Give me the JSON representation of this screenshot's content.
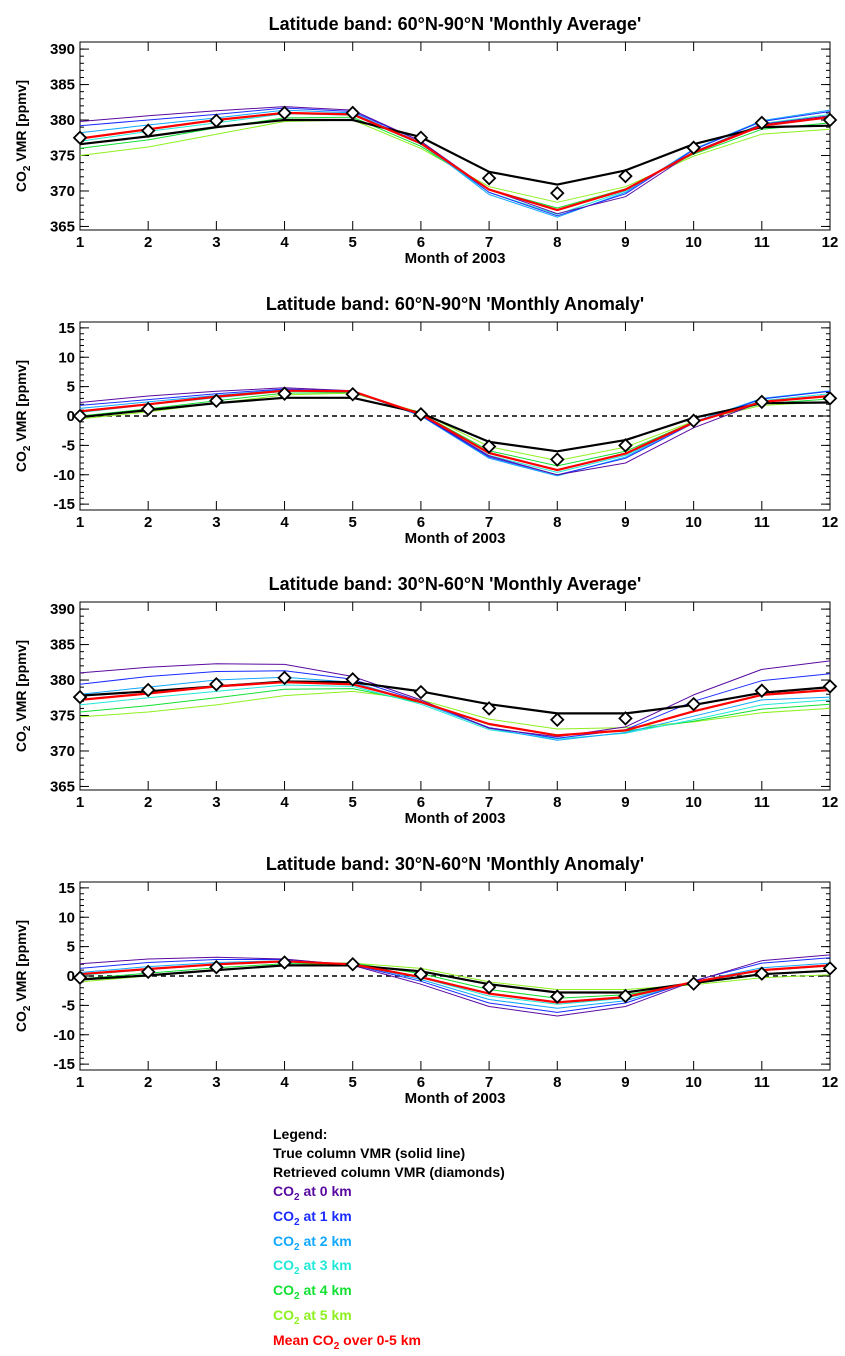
{
  "chart_data": [
    {
      "type": "line",
      "kind": "average",
      "title": "Latitude band: 60°N-90°N 'Monthly Average'",
      "xlabel": "Month of 2003",
      "ylabel_co": "CO",
      "ylabel_sub": "2",
      "ylabel_rest": " VMR [ppmv]",
      "ylim": [
        364.5,
        391
      ],
      "xlim": [
        1,
        12
      ],
      "x": [
        1,
        2,
        3,
        4,
        5,
        6,
        7,
        8,
        9,
        10,
        11,
        12
      ],
      "yticks": [
        365,
        370,
        375,
        380,
        385,
        390
      ],
      "xticks": [
        1,
        2,
        3,
        4,
        5,
        6,
        7,
        8,
        9,
        10,
        11,
        12
      ],
      "zero_line": false,
      "series": [
        {
          "key": "km0",
          "values": [
            379.8,
            380.6,
            381.3,
            381.9,
            381.4,
            377.0,
            370.2,
            366.8,
            369.2,
            375.5,
            379.4,
            380.6
          ]
        },
        {
          "key": "km1",
          "values": [
            379.2,
            380.0,
            380.8,
            381.7,
            381.2,
            377.0,
            369.8,
            366.5,
            369.6,
            375.8,
            379.8,
            381.2
          ]
        },
        {
          "key": "km2",
          "values": [
            378.2,
            379.3,
            380.3,
            381.4,
            381.0,
            376.8,
            369.5,
            366.3,
            369.8,
            375.9,
            379.9,
            381.4
          ]
        },
        {
          "key": "km3",
          "values": [
            377.0,
            378.4,
            379.6,
            380.9,
            380.7,
            376.6,
            369.8,
            366.7,
            370.0,
            375.5,
            379.5,
            380.8
          ]
        },
        {
          "key": "km4",
          "values": [
            376.0,
            377.2,
            378.9,
            380.3,
            380.4,
            376.3,
            370.2,
            367.6,
            370.3,
            375.2,
            378.7,
            379.6
          ]
        },
        {
          "key": "km5",
          "values": [
            375.0,
            376.2,
            378.0,
            379.8,
            380.0,
            376.0,
            370.6,
            368.4,
            370.6,
            374.9,
            378.0,
            378.7
          ]
        },
        {
          "key": "mean",
          "values": [
            377.4,
            378.7,
            380.0,
            381.0,
            380.8,
            376.7,
            370.2,
            367.3,
            370.2,
            375.4,
            379.2,
            380.4
          ]
        },
        {
          "key": "true",
          "values": [
            376.6,
            377.7,
            379.0,
            380.0,
            380.0,
            377.6,
            372.7,
            370.9,
            372.9,
            376.6,
            379.0,
            379.2
          ]
        },
        {
          "key": "retrieved",
          "values": [
            377.5,
            378.5,
            379.9,
            381.0,
            381.0,
            377.5,
            371.8,
            369.7,
            372.1,
            376.1,
            379.6,
            380.0
          ]
        }
      ]
    },
    {
      "type": "line",
      "kind": "anomaly",
      "title": "Latitude band: 60°N-90°N 'Monthly Anomaly'",
      "xlabel": "Month of 2003",
      "ylabel_co": "CO",
      "ylabel_sub": "2",
      "ylabel_rest": " VMR [ppmv]",
      "ylim": [
        -16,
        16
      ],
      "xlim": [
        1,
        12
      ],
      "x": [
        1,
        2,
        3,
        4,
        5,
        6,
        7,
        8,
        9,
        10,
        11,
        12
      ],
      "yticks": [
        -15,
        -10,
        -5,
        0,
        5,
        10,
        15
      ],
      "xticks": [
        1,
        2,
        3,
        4,
        5,
        6,
        7,
        8,
        9,
        10,
        11,
        12
      ],
      "zero_line": true,
      "series": [
        {
          "key": "km0",
          "values": [
            2.3,
            3.4,
            4.2,
            4.8,
            4.3,
            0.2,
            -6.8,
            -10.0,
            -8.0,
            -2.0,
            2.4,
            3.5
          ]
        },
        {
          "key": "km1",
          "values": [
            1.8,
            2.8,
            3.8,
            4.6,
            4.2,
            0.1,
            -7.0,
            -10.0,
            -7.2,
            -1.2,
            2.9,
            4.2
          ]
        },
        {
          "key": "km2",
          "values": [
            1.3,
            2.4,
            3.5,
            4.5,
            4.2,
            0.0,
            -7.2,
            -10.2,
            -7.0,
            -1.0,
            3.0,
            4.3
          ]
        },
        {
          "key": "km3",
          "values": [
            0.6,
            1.9,
            3.1,
            4.2,
            4.1,
            0.1,
            -6.7,
            -9.6,
            -6.7,
            -1.1,
            2.6,
            3.8
          ]
        },
        {
          "key": "km4",
          "values": [
            0.0,
            1.2,
            2.6,
            3.9,
            4.0,
            0.4,
            -5.9,
            -8.5,
            -6.0,
            -1.0,
            2.1,
            2.9
          ]
        },
        {
          "key": "km5",
          "values": [
            -0.5,
            0.7,
            2.2,
            3.6,
            3.9,
            0.6,
            -5.2,
            -7.6,
            -5.3,
            -0.9,
            1.8,
            2.4
          ]
        },
        {
          "key": "mean",
          "values": [
            0.8,
            2.0,
            3.3,
            4.3,
            4.2,
            0.3,
            -6.3,
            -9.2,
            -6.4,
            -1.1,
            2.4,
            3.4
          ]
        },
        {
          "key": "true",
          "values": [
            -0.2,
            1.0,
            2.2,
            3.1,
            3.1,
            0.5,
            -4.4,
            -6.0,
            -4.1,
            -0.3,
            2.2,
            2.3
          ]
        },
        {
          "key": "retrieved",
          "values": [
            0.0,
            1.2,
            2.6,
            3.8,
            3.7,
            0.3,
            -5.2,
            -7.4,
            -5.0,
            -0.8,
            2.4,
            3.0
          ]
        }
      ]
    },
    {
      "type": "line",
      "kind": "average",
      "title": "Latitude band: 30°N-60°N 'Monthly Average'",
      "xlabel": "Month of 2003",
      "ylabel_co": "CO",
      "ylabel_sub": "2",
      "ylabel_rest": " VMR [ppmv]",
      "ylim": [
        364.5,
        391
      ],
      "xlim": [
        1,
        12
      ],
      "x": [
        1,
        2,
        3,
        4,
        5,
        6,
        7,
        8,
        9,
        10,
        11,
        12
      ],
      "yticks": [
        365,
        370,
        375,
        380,
        385,
        390
      ],
      "xticks": [
        1,
        2,
        3,
        4,
        5,
        6,
        7,
        8,
        9,
        10,
        11,
        12
      ],
      "zero_line": false,
      "series": [
        {
          "key": "km0",
          "values": [
            381.0,
            381.8,
            382.3,
            382.2,
            380.5,
            377.2,
            373.2,
            372.0,
            373.4,
            377.9,
            381.5,
            382.7
          ]
        },
        {
          "key": "km1",
          "values": [
            379.4,
            380.5,
            381.2,
            381.3,
            380.1,
            377.0,
            373.3,
            371.8,
            373.0,
            377.0,
            379.9,
            380.9
          ]
        },
        {
          "key": "km2",
          "values": [
            378.0,
            379.0,
            380.0,
            380.4,
            379.7,
            376.8,
            373.2,
            371.5,
            372.6,
            374.9,
            377.2,
            377.6
          ]
        },
        {
          "key": "km3",
          "values": [
            376.5,
            377.5,
            378.4,
            379.3,
            379.1,
            376.6,
            373.0,
            371.7,
            372.5,
            374.4,
            376.5,
            377.2
          ]
        },
        {
          "key": "km4",
          "values": [
            375.5,
            376.4,
            377.5,
            378.7,
            378.8,
            376.8,
            373.7,
            372.3,
            372.8,
            374.2,
            375.9,
            376.6
          ]
        },
        {
          "key": "km5",
          "values": [
            374.8,
            375.5,
            376.5,
            377.8,
            378.4,
            377.2,
            374.5,
            373.1,
            373.3,
            374.1,
            375.4,
            376.0
          ]
        },
        {
          "key": "mean",
          "values": [
            377.2,
            378.1,
            379.1,
            379.7,
            379.4,
            376.9,
            373.8,
            372.2,
            372.9,
            375.6,
            377.9,
            378.6
          ]
        },
        {
          "key": "true",
          "values": [
            377.8,
            378.4,
            379.1,
            379.8,
            379.7,
            378.4,
            376.6,
            375.3,
            375.3,
            376.5,
            378.2,
            379.0
          ]
        },
        {
          "key": "retrieved",
          "values": [
            377.6,
            378.6,
            379.4,
            380.3,
            380.1,
            378.3,
            376.0,
            374.4,
            374.6,
            376.6,
            378.5,
            379.1
          ]
        }
      ]
    },
    {
      "type": "line",
      "kind": "anomaly",
      "title": "Latitude band: 30°N-60°N 'Monthly Anomaly'",
      "xlabel": "Month of 2003",
      "ylabel_co": "CO",
      "ylabel_sub": "2",
      "ylabel_rest": " VMR [ppmv]",
      "ylim": [
        -16,
        16
      ],
      "xlim": [
        1,
        12
      ],
      "x": [
        1,
        2,
        3,
        4,
        5,
        6,
        7,
        8,
        9,
        10,
        11,
        12
      ],
      "yticks": [
        -15,
        -10,
        -5,
        0,
        5,
        10,
        15
      ],
      "xticks": [
        1,
        2,
        3,
        4,
        5,
        6,
        7,
        8,
        9,
        10,
        11,
        12
      ],
      "zero_line": true,
      "series": [
        {
          "key": "km0",
          "values": [
            2.1,
            2.9,
            3.2,
            2.9,
            1.8,
            -1.4,
            -5.2,
            -6.8,
            -5.2,
            -0.9,
            2.6,
            3.6
          ]
        },
        {
          "key": "km1",
          "values": [
            1.3,
            2.3,
            2.8,
            2.8,
            1.9,
            -0.9,
            -4.6,
            -6.2,
            -4.6,
            -0.8,
            2.2,
            3.1
          ]
        },
        {
          "key": "km2",
          "values": [
            0.6,
            1.6,
            2.3,
            2.6,
            2.0,
            -0.6,
            -4.0,
            -5.5,
            -4.2,
            -1.0,
            1.4,
            2.2
          ]
        },
        {
          "key": "km3",
          "values": [
            0.1,
            1.1,
            1.9,
            2.4,
            2.1,
            -0.3,
            -3.4,
            -4.8,
            -3.8,
            -1.1,
            0.9,
            1.7
          ]
        },
        {
          "key": "km4",
          "values": [
            -0.5,
            0.5,
            1.4,
            2.1,
            2.2,
            0.4,
            -2.3,
            -3.8,
            -3.2,
            -1.3,
            0.2,
            0.9
          ]
        },
        {
          "key": "km5",
          "values": [
            -1.0,
            0.0,
            1.0,
            1.8,
            2.2,
            1.3,
            -1.0,
            -2.3,
            -2.3,
            -1.5,
            -0.3,
            0.2
          ]
        },
        {
          "key": "mean",
          "values": [
            0.3,
            1.2,
            2.0,
            2.5,
            2.0,
            -0.2,
            -3.0,
            -4.5,
            -3.6,
            -1.0,
            1.0,
            1.8
          ]
        },
        {
          "key": "true",
          "values": [
            -0.6,
            0.1,
            1.0,
            1.8,
            1.8,
            0.8,
            -1.4,
            -2.8,
            -2.8,
            -1.2,
            0.3,
            0.9
          ]
        },
        {
          "key": "retrieved",
          "values": [
            -0.3,
            0.7,
            1.5,
            2.3,
            2.0,
            0.3,
            -1.9,
            -3.5,
            -3.4,
            -1.3,
            0.4,
            1.3
          ]
        }
      ]
    }
  ],
  "colors": {
    "km0": "#5a0aa0",
    "km1": "#1a2cff",
    "km2": "#12a8ff",
    "km3": "#22e8d8",
    "km4": "#14e034",
    "km5": "#8ef020",
    "mean": "#ff0000",
    "true": "#000000",
    "retrieved": "#000000"
  },
  "legend": {
    "heading": "Legend:",
    "true_line": "True column VMR (solid line)",
    "retrieved": "Retrieved column VMR (diamonds)",
    "co": "CO",
    "sub": "2",
    "km0": " at 0 km",
    "km1": " at 1 km",
    "km2": " at 2 km",
    "km3": " at 3 km",
    "km4": " at 4 km",
    "km5": " at 5 km",
    "mean_pre": "Mean CO",
    "mean_post": " over 0-5 km"
  }
}
